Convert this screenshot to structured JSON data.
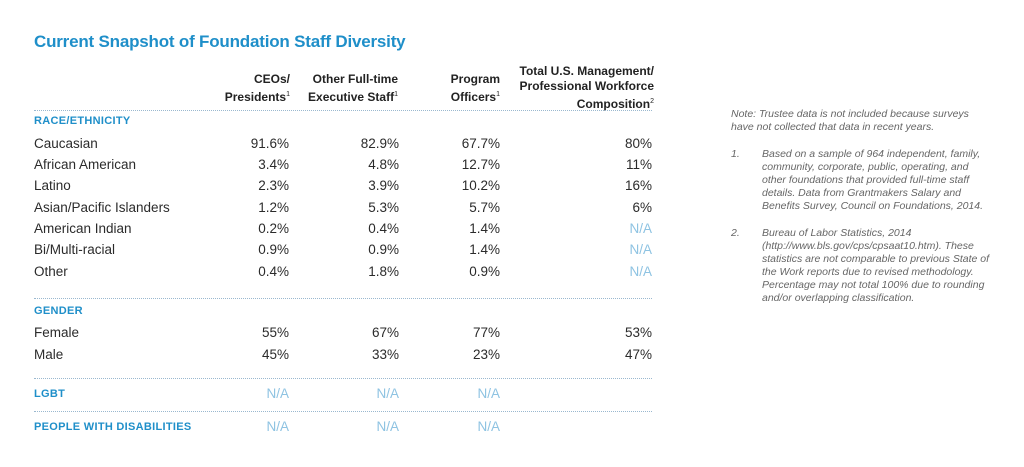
{
  "title": "Current Snapshot of Foundation Staff Diversity",
  "headers": [
    {
      "line1": "CEOs/",
      "line2": "Presidents",
      "sup": "1"
    },
    {
      "line1": "Other Full-time",
      "line2": "Executive Staff",
      "sup": "1"
    },
    {
      "line1": "Program",
      "line2": "Officers",
      "sup": "1"
    },
    {
      "line1": "Total U.S. Management/",
      "line2": "Professional Workforce",
      "line3": "Composition",
      "sup": "2"
    }
  ],
  "race": {
    "heading": "RACE/ETHNICITY",
    "rows": [
      {
        "label": "Caucasian",
        "values": [
          "91.6%",
          "82.9%",
          "67.7%",
          "80%"
        ]
      },
      {
        "label": "African American",
        "values": [
          "3.4%",
          "4.8%",
          "12.7%",
          "11%"
        ]
      },
      {
        "label": "Latino",
        "values": [
          "2.3%",
          "3.9%",
          "10.2%",
          "16%"
        ]
      },
      {
        "label": "Asian/Pacific Islanders",
        "values": [
          "1.2%",
          "5.3%",
          "5.7%",
          "6%"
        ]
      },
      {
        "label": "American Indian",
        "values": [
          "0.2%",
          "0.4%",
          "1.4%",
          "N/A"
        ]
      },
      {
        "label": "Bi/Multi-racial",
        "values": [
          "0.9%",
          "0.9%",
          "1.4%",
          "N/A"
        ]
      },
      {
        "label": "Other",
        "values": [
          "0.4%",
          "1.8%",
          "0.9%",
          "N/A"
        ]
      }
    ]
  },
  "gender": {
    "heading": "GENDER",
    "rows": [
      {
        "label": "Female",
        "values": [
          "55%",
          "67%",
          "77%",
          "53%"
        ]
      },
      {
        "label": "Male",
        "values": [
          "45%",
          "33%",
          "23%",
          "47%"
        ]
      }
    ]
  },
  "lgbt": {
    "label": "LGBT",
    "values": [
      "N/A",
      "N/A",
      "N/A"
    ]
  },
  "disabilities": {
    "label": "PEOPLE WITH DISABILITIES",
    "values": [
      "N/A",
      "N/A",
      "N/A"
    ]
  },
  "notes": {
    "intro": "Note: Trustee data is not included because surveys have not collected that data in recent years.",
    "items": [
      {
        "num": "1.",
        "text": "Based on a sample of 964 independent, family, community, corporate, public, operating, and other foundations that provided full-time staff details. Data from Grantmakers Salary and Benefits Survey, Council on Foundations, 2014."
      },
      {
        "num": "2.",
        "text": "Bureau of Labor Statistics, 2014 (http://www.bls.gov/cps/cpsaat10.htm). These statistics are not comparable to previous State of the Work reports due to revised methodology. Percentage may not total 100% due to rounding and/or overlapping classification."
      }
    ]
  },
  "colors": {
    "accent": "#1f8fc9",
    "na": "#8ec3e2",
    "rule": "#9ab8cf"
  }
}
